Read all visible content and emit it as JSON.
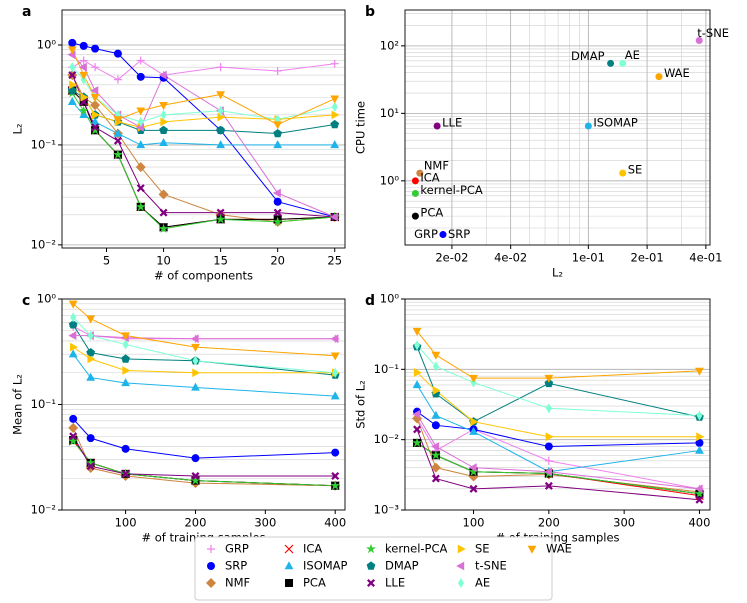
{
  "chart_data": [
    {
      "type": "line",
      "panel_label": "a",
      "xlabel": "# of components",
      "ylabel": "L₂",
      "yscale": "log",
      "grid": true,
      "x": [
        2,
        3,
        4,
        6,
        8,
        10,
        15,
        20,
        25
      ],
      "xlim": [
        1.1,
        25.9
      ],
      "xticks": [
        5,
        10,
        15,
        20,
        25
      ],
      "ylim": [
        0.0093,
        2.24
      ],
      "yticks": [
        {
          "value": 0.01,
          "label": "10⁻²"
        },
        {
          "value": 0.1,
          "label": "10⁻¹"
        },
        {
          "value": 1,
          "label": "10⁰"
        }
      ],
      "series": [
        {
          "name": "GRP",
          "color": "#ee82ee",
          "marker": "plus",
          "values": [
            0.6,
            0.7,
            0.6,
            0.45,
            0.7,
            0.5,
            0.6,
            0.55,
            0.65
          ]
        },
        {
          "name": "SRP",
          "color": "#0000ff",
          "marker": "circle",
          "values": [
            1.05,
            0.98,
            0.92,
            0.82,
            0.48,
            0.47,
            0.14,
            0.027,
            0.019
          ]
        },
        {
          "name": "NMF",
          "color": "#cd853f",
          "marker": "diamond",
          "values": [
            0.5,
            0.3,
            0.25,
            0.13,
            0.06,
            0.032,
            0.02,
            0.017,
            0.019
          ]
        },
        {
          "name": "ICA",
          "color": "#ff0000",
          "marker": "x",
          "values": [
            0.35,
            0.27,
            0.14,
            0.08,
            0.024,
            0.015,
            0.018,
            0.018,
            0.019
          ]
        },
        {
          "name": "ISOMAP",
          "color": "#1eb4ea",
          "marker": "triangle-up",
          "values": [
            0.27,
            0.2,
            0.17,
            0.13,
            0.1,
            0.105,
            0.1,
            0.1,
            0.1
          ]
        },
        {
          "name": "PCA",
          "color": "#000000",
          "marker": "square",
          "values": [
            0.35,
            0.27,
            0.14,
            0.08,
            0.024,
            0.015,
            0.018,
            0.018,
            0.019
          ]
        },
        {
          "name": "kernel-PCA",
          "color": "#32cd32",
          "marker": "star",
          "values": [
            0.33,
            0.22,
            0.14,
            0.08,
            0.024,
            0.0145,
            0.018,
            0.017,
            0.019
          ]
        },
        {
          "name": "DMAP",
          "color": "#008080",
          "marker": "pentagon",
          "values": [
            0.35,
            0.3,
            0.2,
            0.17,
            0.14,
            0.14,
            0.14,
            0.13,
            0.16
          ]
        },
        {
          "name": "LLE",
          "color": "#800080",
          "marker": "thick-x",
          "values": [
            0.5,
            0.27,
            0.15,
            0.11,
            0.037,
            0.021,
            0.021,
            0.021,
            0.019
          ]
        },
        {
          "name": "SE",
          "color": "#ffc400",
          "marker": "triangle-right",
          "values": [
            0.4,
            0.3,
            0.2,
            0.17,
            0.15,
            0.17,
            0.19,
            0.18,
            0.2
          ]
        },
        {
          "name": "t-SNE",
          "color": "#da70d6",
          "marker": "triangle-left",
          "values": [
            0.8,
            0.6,
            0.35,
            0.2,
            0.15,
            0.5,
            0.22,
            0.033,
            0.019
          ]
        },
        {
          "name": "AE",
          "color": "#7fffd4",
          "marker": "thin-diamond",
          "values": [
            0.6,
            0.45,
            0.3,
            0.2,
            0.17,
            0.2,
            0.22,
            0.18,
            0.24
          ]
        },
        {
          "name": "WAE",
          "color": "#ffa500",
          "marker": "triangle-down",
          "values": [
            0.9,
            0.5,
            0.3,
            0.18,
            0.22,
            0.25,
            0.32,
            0.16,
            0.29
          ]
        }
      ]
    },
    {
      "type": "scatter",
      "panel_label": "b",
      "xlabel": "L₂",
      "ylabel": "CPU time",
      "xscale": "log",
      "yscale": "log",
      "grid": true,
      "xlim": [
        0.0115,
        0.42
      ],
      "xticks": [
        {
          "value": 0.02,
          "label": "2e-02"
        },
        {
          "value": 0.04,
          "label": "4e-02"
        },
        {
          "value": 0.1,
          "label": "1e-01"
        },
        {
          "value": 0.2,
          "label": "2e-01"
        },
        {
          "value": 0.4,
          "label": "4e-01"
        }
      ],
      "ylim": [
        0.112,
        340
      ],
      "yticks": [
        {
          "value": 1,
          "label": "10⁰"
        },
        {
          "value": 10,
          "label": "10¹"
        },
        {
          "value": 100,
          "label": "10²"
        }
      ],
      "series": [
        {
          "name": "GRP",
          "color": "#ee82ee",
          "x": [
            0.018
          ],
          "values": [
            0.16
          ]
        },
        {
          "name": "SRP",
          "color": "#0000ff",
          "x": [
            0.018
          ],
          "values": [
            0.16
          ]
        },
        {
          "name": "NMF",
          "color": "#cd853f",
          "x": [
            0.0137
          ],
          "values": [
            1.3
          ]
        },
        {
          "name": "ICA",
          "color": "#ff0000",
          "x": [
            0.013
          ],
          "values": [
            1.0
          ]
        },
        {
          "name": "ISOMAP",
          "color": "#1eb4ea",
          "x": [
            0.1
          ],
          "values": [
            6.5
          ]
        },
        {
          "name": "PCA",
          "color": "#000000",
          "x": [
            0.013
          ],
          "values": [
            0.3
          ]
        },
        {
          "name": "kernel-PCA",
          "color": "#32cd32",
          "x": [
            0.013
          ],
          "values": [
            0.65
          ]
        },
        {
          "name": "DMAP",
          "color": "#008080",
          "x": [
            0.13
          ],
          "values": [
            55
          ]
        },
        {
          "name": "LLE",
          "color": "#800080",
          "x": [
            0.0168
          ],
          "values": [
            6.5
          ]
        },
        {
          "name": "SE",
          "color": "#ffc400",
          "x": [
            0.15
          ],
          "values": [
            1.3
          ]
        },
        {
          "name": "t-SNE",
          "color": "#da70d6",
          "x": [
            0.37
          ],
          "values": [
            120
          ]
        },
        {
          "name": "AE",
          "color": "#7fffd4",
          "x": [
            0.15
          ],
          "values": [
            55
          ]
        },
        {
          "name": "WAE",
          "color": "#ffa500",
          "x": [
            0.23
          ],
          "values": [
            35
          ]
        }
      ]
    },
    {
      "type": "line",
      "panel_label": "c",
      "xlabel": "# of training samples",
      "ylabel": "Mean of L₂",
      "yscale": "log",
      "grid": true,
      "x": [
        25,
        50,
        100,
        200,
        400
      ],
      "xlim": [
        9,
        414
      ],
      "xticks": [
        100,
        200,
        300,
        400
      ],
      "ylim": [
        0.01,
        1
      ],
      "yticks": [
        {
          "value": 0.01,
          "label": "10⁻²"
        },
        {
          "value": 0.1,
          "label": "10⁻¹"
        },
        {
          "value": 1,
          "label": "10⁰"
        }
      ],
      "series": [
        {
          "name": "GRP",
          "color": "#ee82ee",
          "marker": "plus",
          "values": [
            0.55,
            0.45,
            0.42,
            0.42,
            0.42
          ]
        },
        {
          "name": "SRP",
          "color": "#0000ff",
          "marker": "circle",
          "values": [
            0.073,
            0.048,
            0.038,
            0.031,
            0.035
          ]
        },
        {
          "name": "NMF",
          "color": "#cd853f",
          "marker": "diamond",
          "values": [
            0.06,
            0.025,
            0.021,
            0.018,
            0.017
          ]
        },
        {
          "name": "ICA",
          "color": "#ff0000",
          "marker": "x",
          "values": [
            0.045,
            0.028,
            0.022,
            0.019,
            0.017
          ]
        },
        {
          "name": "ISOMAP",
          "color": "#1eb4ea",
          "marker": "triangle-up",
          "values": [
            0.3,
            0.18,
            0.16,
            0.145,
            0.12
          ]
        },
        {
          "name": "PCA",
          "color": "#000000",
          "marker": "square",
          "values": [
            0.046,
            0.028,
            0.022,
            0.019,
            0.017
          ]
        },
        {
          "name": "kernel-PCA",
          "color": "#32cd32",
          "marker": "star",
          "values": [
            0.045,
            0.028,
            0.022,
            0.019,
            0.017
          ]
        },
        {
          "name": "DMAP",
          "color": "#008080",
          "marker": "pentagon",
          "values": [
            0.57,
            0.31,
            0.27,
            0.26,
            0.19
          ]
        },
        {
          "name": "LLE",
          "color": "#800080",
          "marker": "thick-x",
          "values": [
            0.05,
            0.026,
            0.022,
            0.021,
            0.021
          ]
        },
        {
          "name": "SE",
          "color": "#ffc400",
          "marker": "triangle-right",
          "values": [
            0.35,
            0.27,
            0.21,
            0.2,
            0.2
          ]
        },
        {
          "name": "t-SNE",
          "color": "#da70d6",
          "marker": "triangle-left",
          "values": [
            0.45,
            0.45,
            0.43,
            0.42,
            0.42
          ]
        },
        {
          "name": "AE",
          "color": "#7fffd4",
          "marker": "thin-diamond",
          "values": [
            0.67,
            0.45,
            0.37,
            0.26,
            0.2
          ]
        },
        {
          "name": "WAE",
          "color": "#ffa500",
          "marker": "triangle-down",
          "values": [
            0.9,
            0.65,
            0.45,
            0.35,
            0.29
          ]
        }
      ]
    },
    {
      "type": "line",
      "panel_label": "d",
      "xlabel": "# of training samples",
      "ylabel": "Std of L₂",
      "yscale": "log",
      "grid": true,
      "x": [
        25,
        50,
        100,
        200,
        400
      ],
      "xlim": [
        9,
        414
      ],
      "xticks": [
        100,
        200,
        300,
        400
      ],
      "ylim": [
        0.001,
        1
      ],
      "yticks": [
        {
          "value": 0.001,
          "label": "10⁻³"
        },
        {
          "value": 0.01,
          "label": "10⁻²"
        },
        {
          "value": 0.1,
          "label": "10⁻¹"
        },
        {
          "value": 1,
          "label": "10⁰"
        }
      ],
      "series": [
        {
          "name": "GRP",
          "color": "#ee82ee",
          "marker": "plus",
          "values": [
            0.02,
            0.007,
            0.014,
            0.005,
            0.002
          ]
        },
        {
          "name": "SRP",
          "color": "#0000ff",
          "marker": "circle",
          "values": [
            0.025,
            0.016,
            0.014,
            0.008,
            0.009
          ]
        },
        {
          "name": "NMF",
          "color": "#cd853f",
          "marker": "diamond",
          "values": [
            0.02,
            0.004,
            0.003,
            0.0032,
            0.0018
          ]
        },
        {
          "name": "ICA",
          "color": "#ff0000",
          "marker": "x",
          "values": [
            0.009,
            0.006,
            0.0035,
            0.0033,
            0.0016
          ]
        },
        {
          "name": "ISOMAP",
          "color": "#1eb4ea",
          "marker": "triangle-up",
          "values": [
            0.06,
            0.022,
            0.013,
            0.0035,
            0.007
          ]
        },
        {
          "name": "PCA",
          "color": "#000000",
          "marker": "square",
          "values": [
            0.009,
            0.006,
            0.0035,
            0.0033,
            0.0017
          ]
        },
        {
          "name": "kernel-PCA",
          "color": "#32cd32",
          "marker": "star",
          "values": [
            0.009,
            0.006,
            0.0035,
            0.0033,
            0.0017
          ]
        },
        {
          "name": "DMAP",
          "color": "#008080",
          "marker": "pentagon",
          "values": [
            0.21,
            0.045,
            0.018,
            0.063,
            0.021
          ]
        },
        {
          "name": "LLE",
          "color": "#800080",
          "marker": "thick-x",
          "values": [
            0.014,
            0.0028,
            0.002,
            0.0022,
            0.0014
          ]
        },
        {
          "name": "SE",
          "color": "#ffc400",
          "marker": "triangle-right",
          "values": [
            0.09,
            0.05,
            0.018,
            0.011,
            0.011
          ]
        },
        {
          "name": "t-SNE",
          "color": "#da70d6",
          "marker": "triangle-left",
          "values": [
            0.023,
            0.008,
            0.004,
            0.0035,
            0.002
          ]
        },
        {
          "name": "AE",
          "color": "#7fffd4",
          "marker": "thin-diamond",
          "values": [
            0.22,
            0.11,
            0.065,
            0.028,
            0.022
          ]
        },
        {
          "name": "WAE",
          "color": "#ffa500",
          "marker": "triangle-down",
          "values": [
            0.35,
            0.16,
            0.075,
            0.075,
            0.095
          ]
        }
      ]
    }
  ]
}
